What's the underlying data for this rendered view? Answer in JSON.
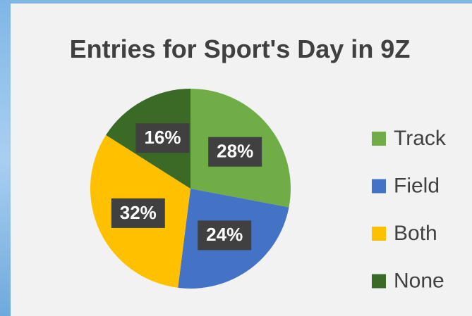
{
  "chart_data": {
    "type": "pie",
    "title": "Entries for Sport's Day in 9Z",
    "categories": [
      "Track",
      "Field",
      "Both",
      "None"
    ],
    "values": [
      28,
      24,
      32,
      16
    ],
    "value_labels": [
      "28%",
      "24%",
      "32%",
      "16%"
    ],
    "colors": [
      "#70ad47",
      "#4472c4",
      "#ffc000",
      "#3b6a27"
    ],
    "legend": "right"
  }
}
